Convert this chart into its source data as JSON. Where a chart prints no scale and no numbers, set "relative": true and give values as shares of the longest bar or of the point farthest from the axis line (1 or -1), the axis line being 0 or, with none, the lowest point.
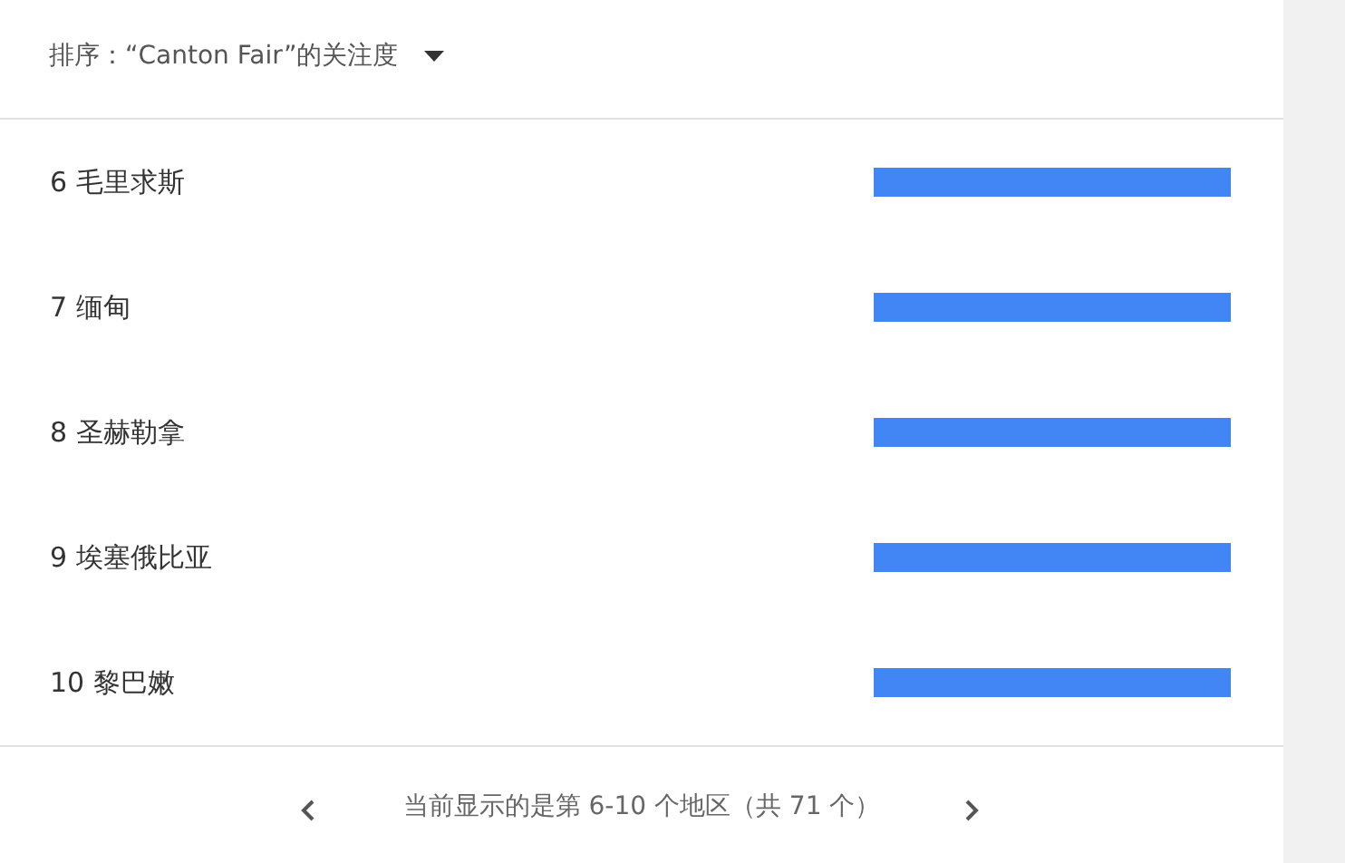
{
  "chart_data": {
    "type": "bar",
    "orientation": "horizontal",
    "relative": true,
    "title": "排序：“Canton Fair”的关注度",
    "categories": [
      "6   毛里求斯",
      "7   缅甸",
      "8   圣赫勒拿",
      "9   埃塞俄比亚",
      "10 黎巴嫩"
    ],
    "values": [
      1,
      1,
      1,
      1,
      1
    ],
    "color": "#4285f4",
    "annotations": [
      "当前显示的是第 6-10 个地区（共 71 个）"
    ]
  }
}
